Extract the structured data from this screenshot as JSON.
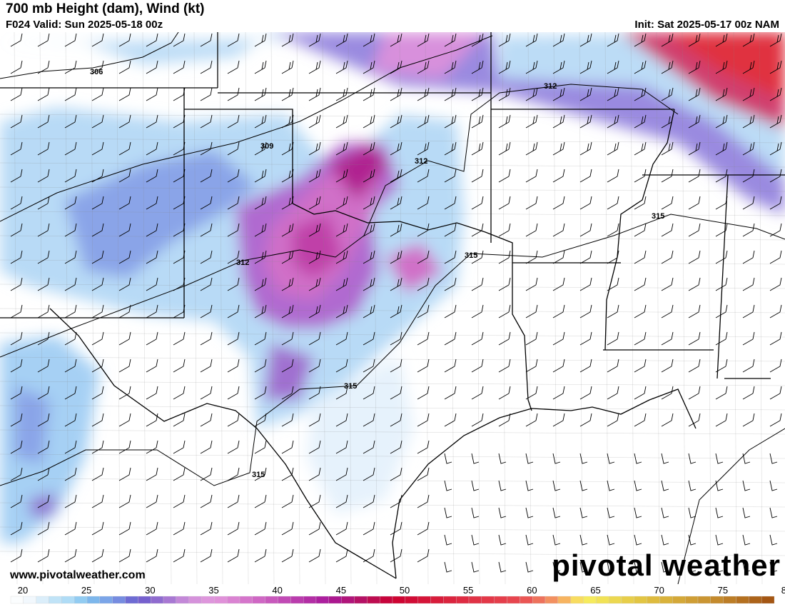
{
  "header": {
    "title": "700 mb Height (dam), Wind (kt)",
    "valid": "F024 Valid: Sun 2025-05-18 00z",
    "init": "Init: Sat 2025-05-17 00z NAM"
  },
  "map": {
    "contour_labels": [
      "306",
      "309",
      "312",
      "312",
      "312",
      "312",
      "315",
      "315",
      "315",
      "315"
    ],
    "field": "700 mb wind speed (kt)"
  },
  "footer": {
    "url": "www.pivotalweather.com",
    "logo": "pivotal weather"
  },
  "colorbar": {
    "min": 20,
    "max": 80,
    "tick_labels": [
      "20",
      "25",
      "30",
      "35",
      "40",
      "45",
      "50",
      "55",
      "60",
      "65",
      "70",
      "75",
      "80"
    ],
    "stops": [
      [
        20,
        "#ffffff"
      ],
      [
        22,
        "#eef5fc"
      ],
      [
        23,
        "#c8e6f8"
      ],
      [
        25,
        "#a6d8f5"
      ],
      [
        26,
        "#7ec0ee"
      ],
      [
        28,
        "#7a9ce6"
      ],
      [
        30,
        "#6a5acd"
      ],
      [
        32,
        "#9b70d0"
      ],
      [
        34,
        "#d090da"
      ],
      [
        36,
        "#e398dc"
      ],
      [
        40,
        "#cc60c0"
      ],
      [
        45,
        "#a8189a"
      ],
      [
        48,
        "#b8105a"
      ],
      [
        50,
        "#cc0030"
      ],
      [
        55,
        "#dd2840"
      ],
      [
        60,
        "#e84850"
      ],
      [
        62,
        "#f08060"
      ],
      [
        63,
        "#f5a060"
      ],
      [
        64,
        "#f8c860"
      ],
      [
        65,
        "#f8f060"
      ],
      [
        70,
        "#e0c040"
      ],
      [
        75,
        "#c89030"
      ],
      [
        80,
        "#a05010"
      ]
    ]
  }
}
